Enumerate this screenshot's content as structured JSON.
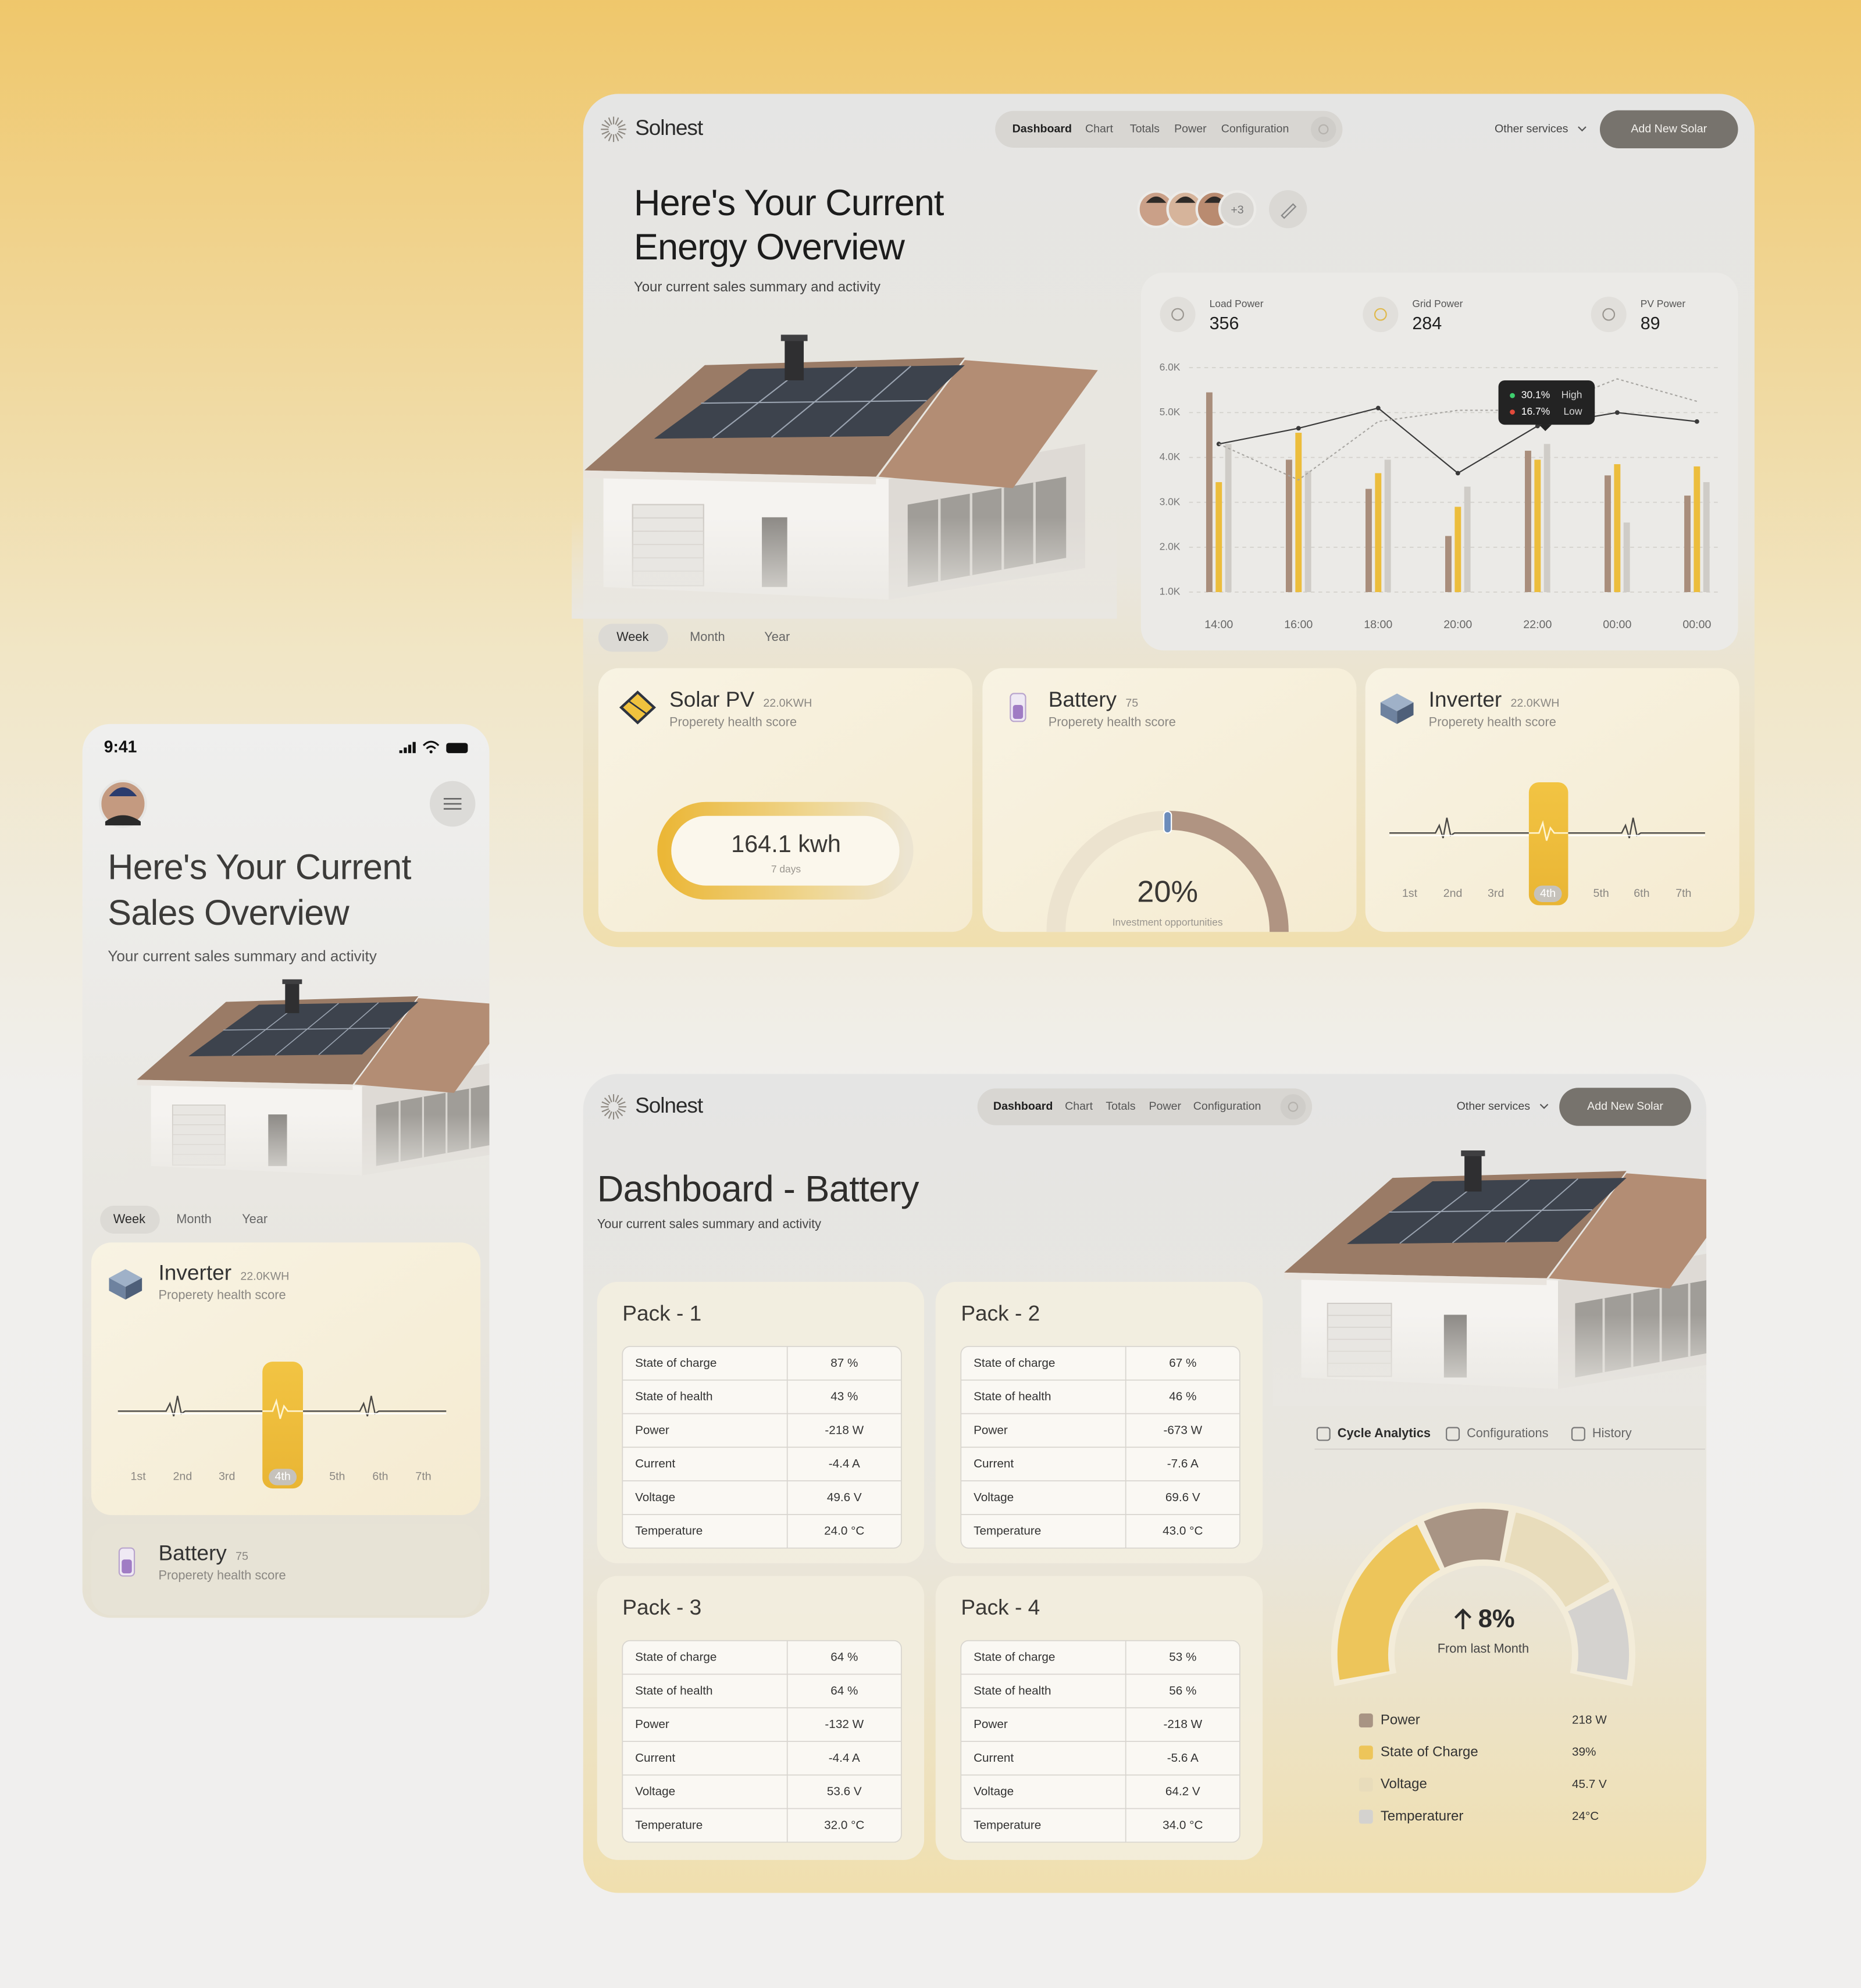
{
  "overview": {
    "brand": "Solnest",
    "nav": [
      "Dashboard",
      "Chart",
      "Totals",
      "Power",
      "Configuration"
    ],
    "other_services": "Other services",
    "add_button": "Add New Solar",
    "title": [
      "Here's Your Current",
      "Energy Overview"
    ],
    "subtitle": "Your current sales summary and activity",
    "avatars_more": "+3",
    "periods": [
      "Week",
      "Month",
      "Year"
    ],
    "stats": [
      {
        "label": "Load Power",
        "value": 356
      },
      {
        "label": "Grid Power",
        "value": 284
      },
      {
        "label": "PV Power",
        "value": 89
      }
    ],
    "solar_pv": {
      "title": "Solar PV",
      "badge": "22.0KWH",
      "subtitle": "Properety health score",
      "reading": "164.1 kwh",
      "period": "7 days"
    },
    "battery": {
      "title": "Battery",
      "badge": "75",
      "subtitle": "Properety health score",
      "reading": "20%",
      "caption": "Investment opportunities"
    },
    "inverter": {
      "title": "Inverter",
      "badge": "22.0KWH",
      "subtitle": "Properety health score",
      "days": [
        "1st",
        "2nd",
        "3rd",
        "4th",
        "5th",
        "6th",
        "7th"
      ],
      "selected": 3
    }
  },
  "chart_data": {
    "type": "bar",
    "categories": [
      "14:00",
      "16:00",
      "18:00",
      "20:00",
      "22:00",
      "00:00",
      "00:00"
    ],
    "series": [
      {
        "color": "#a98e7c",
        "values": [
          5450,
          3950,
          3300,
          2250,
          4150,
          3600,
          3150
        ]
      },
      {
        "color": "#ecbd3c",
        "values": [
          3450,
          4550,
          3650,
          2900,
          3950,
          3850,
          3800
        ]
      },
      {
        "color": "#cfccc7",
        "values": [
          4300,
          3700,
          3950,
          3350,
          4300,
          2550,
          3450
        ]
      },
      {
        "type": "line",
        "color": "#3a3a3a",
        "values": [
          4300,
          4650,
          5100,
          3650,
          4700,
          5000,
          4800
        ]
      },
      {
        "type": "line",
        "color": "#a9a7a3",
        "dashed": true,
        "values": [
          4300,
          3500,
          4800,
          5050,
          5050,
          5750,
          5250
        ]
      }
    ],
    "ylim": [
      1000,
      6000
    ],
    "yticks": [
      {
        "value": 1000,
        "label": "1.0K"
      },
      {
        "value": 2000,
        "label": "2.0K"
      },
      {
        "value": 3000,
        "label": "3.0K"
      },
      {
        "value": 4000,
        "label": "4.0K"
      },
      {
        "value": 5000,
        "label": "5.0K"
      },
      {
        "value": 6000,
        "label": "6.0K"
      }
    ],
    "grid": true,
    "tooltip": [
      {
        "value": "30.1%",
        "label": "High",
        "color": "#3ecf6e"
      },
      {
        "value": "16.7%",
        "label": "Low",
        "color": "#e24a3b"
      }
    ]
  },
  "mobile": {
    "time": "9:41",
    "title": [
      "Here's Your Current",
      "Sales Overview"
    ],
    "subtitle": "Your current sales summary and activity",
    "periods": [
      "Week",
      "Month",
      "Year"
    ],
    "inverter": {
      "title": "Inverter",
      "badge": "22.0KWH",
      "subtitle": "Properety health score",
      "days": [
        "1st",
        "2nd",
        "3rd",
        "4th",
        "5th",
        "6th",
        "7th"
      ],
      "selected": 3
    },
    "battery": {
      "title": "Battery",
      "badge": "75",
      "subtitle": "Properety health score"
    }
  },
  "battery_dashboard": {
    "brand": "Solnest",
    "nav": [
      "Dashboard",
      "Chart",
      "Totals",
      "Power",
      "Configuration"
    ],
    "other_services": "Other services",
    "add_button": "Add New Solar",
    "title": "Dashboard - Battery",
    "subtitle": "Your current sales summary and activity",
    "packs": [
      {
        "name": "Pack - 1",
        "rows": [
          [
            "State of charge",
            "87 %"
          ],
          [
            "State of health",
            "43 %"
          ],
          [
            "Power",
            "-218 W"
          ],
          [
            "Current",
            "-4.4 A"
          ],
          [
            "Voltage",
            "49.6 V"
          ],
          [
            "Temperature",
            "24.0 °C"
          ]
        ]
      },
      {
        "name": "Pack - 2",
        "rows": [
          [
            "State of charge",
            "67 %"
          ],
          [
            "State of health",
            "46 %"
          ],
          [
            "Power",
            "-673 W"
          ],
          [
            "Current",
            "-7.6 A"
          ],
          [
            "Voltage",
            "69.6 V"
          ],
          [
            "Temperature",
            "43.0 °C"
          ]
        ]
      },
      {
        "name": "Pack - 3",
        "rows": [
          [
            "State of charge",
            "64 %"
          ],
          [
            "State of health",
            "64 %"
          ],
          [
            "Power",
            "-132 W"
          ],
          [
            "Current",
            "-4.4 A"
          ],
          [
            "Voltage",
            "53.6 V"
          ],
          [
            "Temperature",
            "32.0 °C"
          ]
        ]
      },
      {
        "name": "Pack - 4",
        "rows": [
          [
            "State of charge",
            "53 %"
          ],
          [
            "State of health",
            "56 %"
          ],
          [
            "Power",
            "-218 W"
          ],
          [
            "Current",
            "-5.6 A"
          ],
          [
            "Voltage",
            "64.2 V"
          ],
          [
            "Temperature",
            "34.0 °C"
          ]
        ]
      }
    ],
    "tabs": [
      "Cycle Analytics",
      "Configurations",
      "History"
    ],
    "change": "8%",
    "change_caption": "From last Month",
    "legend": [
      {
        "name": "Power",
        "value": "218 W",
        "color": "#a89484"
      },
      {
        "name": "State of Charge",
        "value": "39%",
        "color": "#edc55a"
      },
      {
        "name": "Voltage",
        "value": "45.7 V",
        "color": "#e8dcbb"
      },
      {
        "name": "Temperaturer",
        "value": "24°C",
        "color": "#d4d2cf"
      }
    ]
  }
}
